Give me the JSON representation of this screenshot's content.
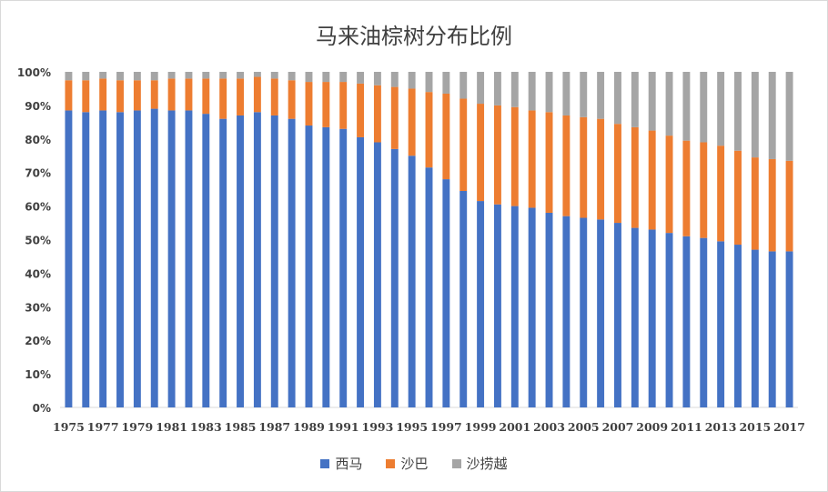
{
  "chart_data": {
    "type": "bar",
    "stacked": true,
    "title": "马来油棕树分布比例",
    "categories": [
      "1975",
      "1976",
      "1977",
      "1978",
      "1979",
      "1980",
      "1981",
      "1982",
      "1983",
      "1984",
      "1985",
      "1986",
      "1987",
      "1988",
      "1989",
      "1990",
      "1991",
      "1992",
      "1993",
      "1994",
      "1995",
      "1996",
      "1997",
      "1998",
      "1999",
      "2000",
      "2001",
      "2002",
      "2003",
      "2004",
      "2005",
      "2006",
      "2007",
      "2008",
      "2009",
      "2010",
      "2011",
      "2012",
      "2013",
      "2014",
      "2015",
      "2016",
      "2017"
    ],
    "x_tick_labels": [
      "1975",
      "1977",
      "1979",
      "1981",
      "1983",
      "1985",
      "1987",
      "1989",
      "1991",
      "1993",
      "1995",
      "1997",
      "1999",
      "2001",
      "2003",
      "2005",
      "2007",
      "2009",
      "2011",
      "2013",
      "2015",
      "2017"
    ],
    "y_tick_labels": [
      "0%",
      "10%",
      "20%",
      "30%",
      "40%",
      "50%",
      "60%",
      "70%",
      "80%",
      "90%",
      "100%"
    ],
    "ylim": [
      0,
      100
    ],
    "grid": false,
    "legend_position": "bottom",
    "series": [
      {
        "name": "西马",
        "color": "#4472c4",
        "values": [
          88.5,
          88,
          88.5,
          88,
          88.5,
          89,
          88.5,
          88.5,
          87.5,
          86,
          87,
          88,
          87,
          86,
          84,
          83.5,
          83,
          80.5,
          79,
          77,
          75,
          71.5,
          68,
          64.5,
          61.5,
          60.5,
          60,
          59.5,
          58,
          57,
          56.5,
          56,
          55,
          53.5,
          53,
          52,
          51,
          50.5,
          49.5,
          48.5,
          47,
          46.5,
          46.5
        ]
      },
      {
        "name": "沙巴",
        "color": "#ed7d31",
        "values": [
          9,
          9.5,
          9.5,
          9.5,
          9,
          8.5,
          9.5,
          9.5,
          10.5,
          12,
          11,
          10.5,
          11,
          11.5,
          13,
          13.5,
          14,
          16,
          17,
          18.5,
          20,
          22.5,
          25.5,
          27.5,
          29,
          29.5,
          29.5,
          29,
          30,
          30,
          30,
          30,
          29.5,
          30,
          29.5,
          29,
          28.5,
          28.5,
          28.5,
          28,
          27.5,
          27.5,
          27
        ]
      },
      {
        "name": "沙捞越",
        "color": "#a5a5a5",
        "values": [
          2.5,
          2.5,
          2,
          2.5,
          2.5,
          2.5,
          2,
          2,
          2,
          2,
          2,
          1.5,
          2,
          2.5,
          3,
          3,
          3,
          3.5,
          4,
          4.5,
          5,
          6,
          6.5,
          8,
          9.5,
          10,
          10.5,
          11.5,
          12,
          13,
          13.5,
          14,
          15.5,
          16.5,
          17.5,
          19,
          20.5,
          21,
          22,
          23.5,
          25.5,
          26,
          26.5
        ]
      }
    ]
  }
}
